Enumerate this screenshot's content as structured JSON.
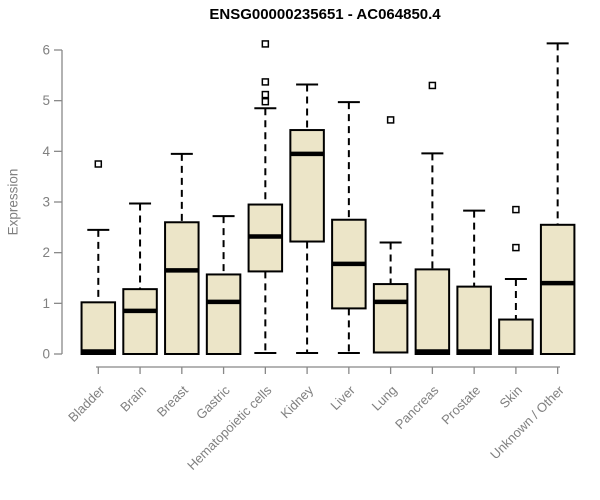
{
  "chart_data": {
    "type": "boxplot",
    "title": "ENSG00000235651 - AC064850.4",
    "ylabel": "Expression",
    "xlabel": "",
    "ylim": [
      0,
      6
    ],
    "yticks": [
      0,
      1,
      2,
      3,
      4,
      5,
      6
    ],
    "grid": false,
    "legend": "none",
    "colors": {
      "box_fill": "#ece5c8",
      "box_border": "#000000",
      "median": "#000000",
      "whisker": "#000000",
      "outlier_fill": "#ffffff",
      "axis": "#888888",
      "tick_label": "#808080",
      "title": "#000000",
      "background": "#ffffff"
    },
    "categories": [
      "Bladder",
      "Brain",
      "Breast",
      "Gastric",
      "Hematopoietic cells",
      "Kidney",
      "Liver",
      "Lung",
      "Pancreas",
      "Prostate",
      "Skin",
      "Unknown / Other"
    ],
    "boxes": [
      {
        "label": "Bladder",
        "whisker_low": 0,
        "q1": 0,
        "median": 0.05,
        "q3": 1.02,
        "whisker_high": 2.45,
        "outliers": [
          3.75
        ]
      },
      {
        "label": "Brain",
        "whisker_low": 0,
        "q1": 0,
        "median": 0.85,
        "q3": 1.28,
        "whisker_high": 2.97,
        "outliers": []
      },
      {
        "label": "Breast",
        "whisker_low": 0,
        "q1": 0,
        "median": 1.65,
        "q3": 2.6,
        "whisker_high": 3.95,
        "outliers": []
      },
      {
        "label": "Gastric",
        "whisker_low": 0,
        "q1": 0,
        "median": 1.03,
        "q3": 1.57,
        "whisker_high": 2.72,
        "outliers": []
      },
      {
        "label": "Hematopoietic cells",
        "whisker_low": 0.02,
        "q1": 1.63,
        "median": 2.32,
        "q3": 2.95,
        "whisker_high": 4.85,
        "outliers": [
          4.98,
          5.12,
          5.37,
          6.12
        ]
      },
      {
        "label": "Kidney",
        "whisker_low": 0.02,
        "q1": 2.22,
        "median": 3.95,
        "q3": 4.42,
        "whisker_high": 5.32,
        "outliers": []
      },
      {
        "label": "Liver",
        "whisker_low": 0.02,
        "q1": 0.9,
        "median": 1.78,
        "q3": 2.65,
        "whisker_high": 4.97,
        "outliers": []
      },
      {
        "label": "Lung",
        "whisker_low": 0.03,
        "q1": 0.03,
        "median": 1.03,
        "q3": 1.38,
        "whisker_high": 2.2,
        "outliers": [
          4.62
        ]
      },
      {
        "label": "Pancreas",
        "whisker_low": 0,
        "q1": 0,
        "median": 0.05,
        "q3": 1.67,
        "whisker_high": 3.96,
        "outliers": [
          5.3
        ]
      },
      {
        "label": "Prostate",
        "whisker_low": 0,
        "q1": 0,
        "median": 0.05,
        "q3": 1.33,
        "whisker_high": 2.83,
        "outliers": []
      },
      {
        "label": "Skin",
        "whisker_low": 0,
        "q1": 0,
        "median": 0.05,
        "q3": 0.68,
        "whisker_high": 1.48,
        "outliers": [
          2.1,
          2.85
        ]
      },
      {
        "label": "Unknown / Other",
        "whisker_low": 0,
        "q1": 0,
        "median": 1.4,
        "q3": 2.55,
        "whisker_high": 6.13,
        "outliers": []
      }
    ]
  }
}
